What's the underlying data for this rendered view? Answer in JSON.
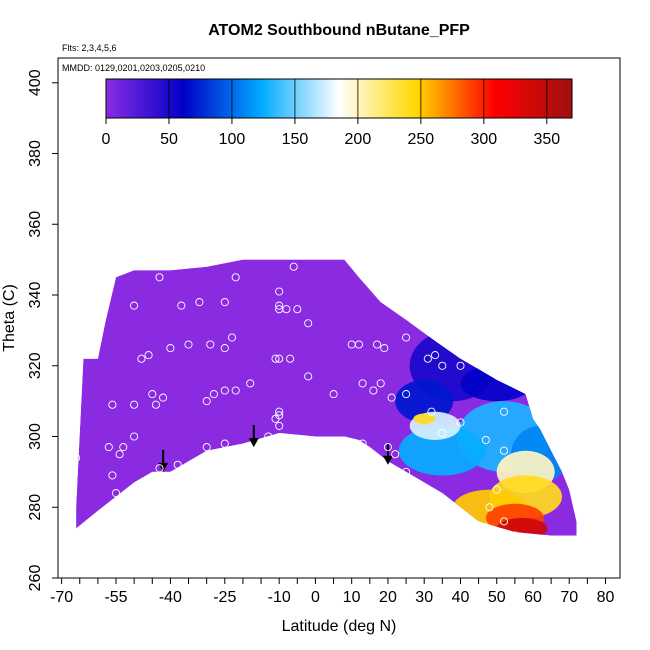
{
  "chart_data": {
    "type": "heatmap",
    "title": "ATOM2 Southbound nButane_PFP",
    "subtitle_flights": "Flts: 2,3,4,5,6",
    "subtitle_dates": "MMDD: 0129,0201,0203,0205,0210",
    "xlabel": "Latitude (deg N)",
    "ylabel": "Theta (C)",
    "xlim": [
      -71,
      84
    ],
    "ylim": [
      260,
      407
    ],
    "x_ticks_major": [
      -70,
      -55,
      -40,
      -25,
      -10,
      0,
      10,
      20,
      30,
      40,
      50,
      60,
      70,
      80
    ],
    "x_ticks_all": [
      -70,
      -65,
      -60,
      -55,
      -50,
      -45,
      -40,
      -35,
      -30,
      -25,
      -20,
      -15,
      -10,
      -5,
      0,
      5,
      10,
      15,
      20,
      25,
      30,
      35,
      40,
      45,
      50,
      55,
      60,
      65,
      70,
      75,
      80
    ],
    "y_ticks": [
      260,
      280,
      300,
      320,
      340,
      360,
      380,
      400
    ],
    "colorbar": {
      "range": [
        0,
        370
      ],
      "ticks": [
        0,
        50,
        100,
        150,
        200,
        250,
        300,
        350
      ],
      "colors": [
        "#8a2be2",
        "#0000c8",
        "#00aaff",
        "#ffffff",
        "#ffd700",
        "#ff0000",
        "#a01010"
      ]
    },
    "fill_color": "#8a2be2",
    "outline_top": [
      [
        -66,
        280
      ],
      [
        -64,
        322
      ],
      [
        -60,
        322
      ],
      [
        -58,
        332
      ],
      [
        -55,
        345
      ],
      [
        -50,
        347
      ],
      [
        -40,
        347
      ],
      [
        -30,
        348
      ],
      [
        -20,
        350
      ],
      [
        -10,
        350
      ],
      [
        0,
        350
      ],
      [
        8,
        350
      ],
      [
        12,
        345
      ],
      [
        18,
        338
      ],
      [
        25,
        333
      ],
      [
        33,
        327
      ],
      [
        40,
        322
      ],
      [
        45,
        319
      ],
      [
        50,
        316
      ],
      [
        58,
        312
      ],
      [
        60,
        305
      ],
      [
        62,
        302
      ],
      [
        65,
        296
      ],
      [
        68,
        290
      ],
      [
        70,
        285
      ],
      [
        72,
        276
      ]
    ],
    "outline_bottom": [
      [
        72,
        272
      ],
      [
        65,
        272
      ],
      [
        55,
        273
      ],
      [
        45,
        276
      ],
      [
        40,
        280
      ],
      [
        35,
        284
      ],
      [
        30,
        287
      ],
      [
        25,
        290
      ],
      [
        20,
        293
      ],
      [
        15,
        297
      ],
      [
        12,
        299
      ],
      [
        8,
        300
      ],
      [
        0,
        300
      ],
      [
        -10,
        301
      ],
      [
        -20,
        298
      ],
      [
        -30,
        296
      ],
      [
        -40,
        290
      ],
      [
        -45,
        290
      ],
      [
        -50,
        287
      ],
      [
        -60,
        279
      ],
      [
        -66,
        274
      ]
    ],
    "blobs": [
      {
        "lat": 38,
        "theta": 320,
        "value": 50,
        "rx": 12,
        "ry": 10
      },
      {
        "lat": 50,
        "theta": 315,
        "value": 60,
        "rx": 10,
        "ry": 5
      },
      {
        "lat": 30,
        "theta": 310,
        "value": 70,
        "rx": 8,
        "ry": 6
      },
      {
        "lat": 52,
        "theta": 300,
        "value": 130,
        "rx": 13,
        "ry": 10
      },
      {
        "lat": 62,
        "theta": 295,
        "value": 110,
        "rx": 8,
        "ry": 8
      },
      {
        "lat": 35,
        "theta": 296,
        "value": 125,
        "rx": 12,
        "ry": 7
      },
      {
        "lat": 33,
        "theta": 303,
        "value": 175,
        "rx": 7,
        "ry": 4
      },
      {
        "lat": 30,
        "theta": 305,
        "value": 240,
        "rx": 3,
        "ry": 1.5
      },
      {
        "lat": 58,
        "theta": 290,
        "value": 200,
        "rx": 8,
        "ry": 6
      },
      {
        "lat": 58,
        "theta": 283,
        "value": 240,
        "rx": 10,
        "ry": 6
      },
      {
        "lat": 48,
        "theta": 280,
        "value": 250,
        "rx": 10,
        "ry": 5
      },
      {
        "lat": 55,
        "theta": 277,
        "value": 290,
        "rx": 8,
        "ry": 4
      },
      {
        "lat": 57,
        "theta": 274,
        "value": 340,
        "rx": 7,
        "ry": 3
      }
    ],
    "arrows": [
      {
        "lat": -42,
        "theta": 290
      },
      {
        "lat": -17,
        "theta": 297
      },
      {
        "lat": 20,
        "theta": 292
      }
    ],
    "sample_points": [
      [
        -43,
        345
      ],
      [
        -50,
        337
      ],
      [
        -37,
        337
      ],
      [
        -32,
        338
      ],
      [
        -25,
        338
      ],
      [
        -22,
        345
      ],
      [
        -6,
        348
      ],
      [
        -10,
        341
      ],
      [
        -10,
        337
      ],
      [
        -10,
        336
      ],
      [
        -8,
        336
      ],
      [
        -5,
        336
      ],
      [
        -2,
        332
      ],
      [
        10,
        326
      ],
      [
        12,
        326
      ],
      [
        17,
        326
      ],
      [
        19,
        325
      ],
      [
        25,
        328
      ],
      [
        31,
        322
      ],
      [
        33,
        323
      ],
      [
        35,
        320
      ],
      [
        40,
        320
      ],
      [
        -48,
        322
      ],
      [
        -46,
        323
      ],
      [
        -40,
        325
      ],
      [
        -35,
        326
      ],
      [
        -25,
        325
      ],
      [
        -29,
        326
      ],
      [
        -23,
        328
      ],
      [
        -10,
        322
      ],
      [
        -11,
        322
      ],
      [
        -7,
        322
      ],
      [
        -18,
        315
      ],
      [
        -22,
        313
      ],
      [
        -25,
        313
      ],
      [
        -28,
        312
      ],
      [
        -30,
        310
      ],
      [
        -45,
        312
      ],
      [
        -42,
        311
      ],
      [
        -44,
        309
      ],
      [
        -50,
        309
      ],
      [
        -56,
        309
      ],
      [
        -2,
        317
      ],
      [
        5,
        312
      ],
      [
        13,
        315
      ],
      [
        18,
        315
      ],
      [
        16,
        313
      ],
      [
        21,
        311
      ],
      [
        25,
        312
      ],
      [
        -10,
        307
      ],
      [
        -10,
        306
      ],
      [
        -11,
        305
      ],
      [
        -10,
        303
      ],
      [
        -13,
        300
      ],
      [
        -25,
        298
      ],
      [
        -30,
        297
      ],
      [
        -38,
        292
      ],
      [
        -43,
        291
      ],
      [
        -50,
        300
      ],
      [
        -53,
        297
      ],
      [
        -54,
        295
      ],
      [
        -57,
        297
      ],
      [
        -56,
        289
      ],
      [
        -66,
        294
      ],
      [
        -67,
        289
      ],
      [
        -55,
        284
      ],
      [
        20,
        297
      ],
      [
        22,
        295
      ],
      [
        25,
        290
      ],
      [
        13,
        298
      ],
      [
        32,
        307
      ],
      [
        40,
        304
      ],
      [
        35,
        301
      ],
      [
        52,
        307
      ],
      [
        47,
        299
      ],
      [
        52,
        296
      ],
      [
        50,
        285
      ],
      [
        48,
        280
      ],
      [
        52,
        276
      ],
      [
        55,
        272
      ]
    ]
  }
}
